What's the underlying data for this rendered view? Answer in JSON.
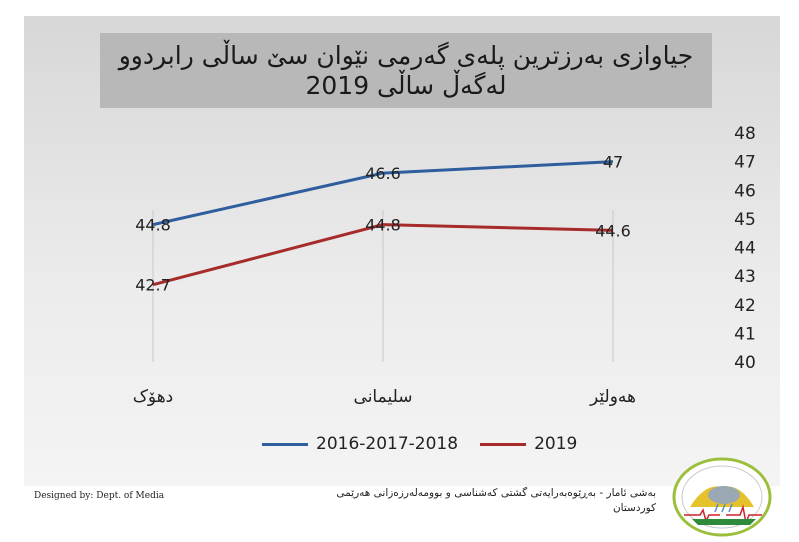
{
  "title": {
    "line1": "جیاوازی بەرزترین پلەی گەرمی نێوان سێ ساڵی رابردوو",
    "line2": "لەگەڵ ساڵی 2019"
  },
  "footer": {
    "credit": "Designed by: Dept. of Media",
    "org_line1": "بەشی ئامار - بەڕێوەبەرایەتی گشتی کەشناسی و بوومەلەرزەزانی هەرێمی",
    "org_line2": "کوردستان"
  },
  "chart_data": {
    "type": "line",
    "title": "جیاوازی بەرزترین پلەی گەرمی نێوان سێ ساڵی رابردوو لەگەڵ ساڵی 2019",
    "categories": [
      "دهۆک",
      "سلیمانی",
      "هەولێر"
    ],
    "series": [
      {
        "name": "2016-2017-2018",
        "values": [
          44.8,
          46.6,
          47
        ],
        "color": "#2e5e9e"
      },
      {
        "name": "2019",
        "values": [
          42.7,
          44.8,
          44.6
        ],
        "color": "#a62b2b"
      }
    ],
    "yaxis": {
      "position": "right",
      "min": 40,
      "max": 48,
      "ticks": [
        40,
        41,
        42,
        43,
        44,
        45,
        46,
        47,
        48
      ]
    },
    "grid": false,
    "legend": "bottom",
    "data_labels": true
  }
}
